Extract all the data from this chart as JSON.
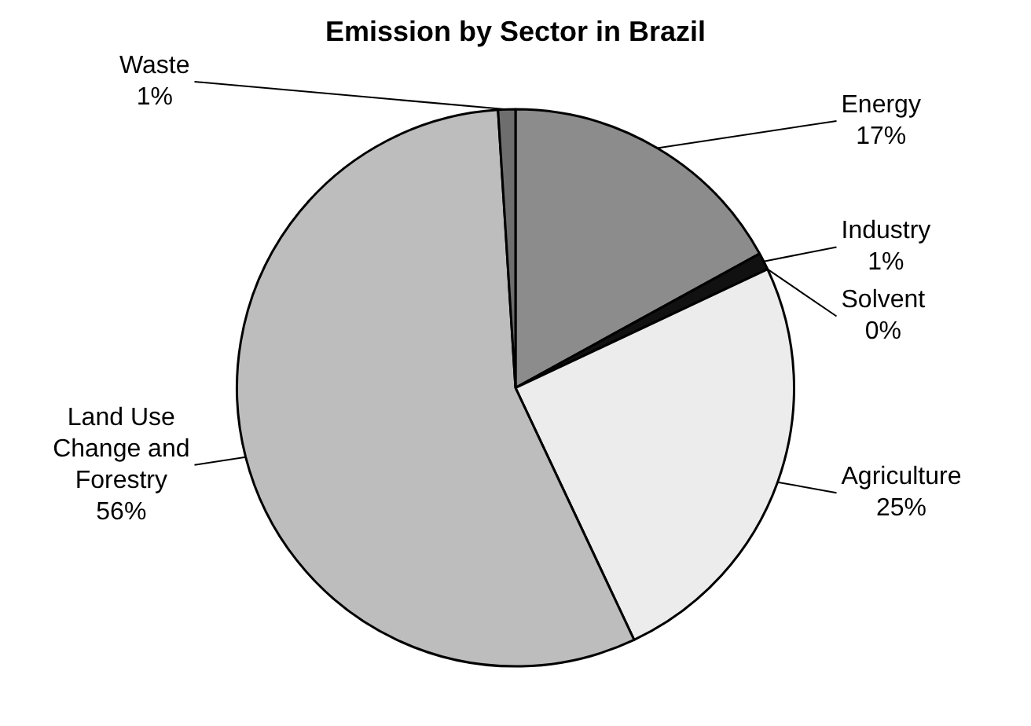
{
  "chart_data": {
    "type": "pie",
    "title": "Emission by Sector in Brazil",
    "categories": [
      "Energy",
      "Industry",
      "Solvent",
      "Agriculture",
      "Land Use Change and Forestry",
      "Waste"
    ],
    "values": [
      17,
      1,
      0,
      25,
      56,
      1
    ],
    "colors": [
      "#8c8c8c",
      "#111111",
      "#ffffff",
      "#ececec",
      "#bdbdbd",
      "#6e6e6e"
    ],
    "value_labels": [
      "17%",
      "1%",
      "0%",
      "25%",
      "56%",
      "1%"
    ]
  }
}
